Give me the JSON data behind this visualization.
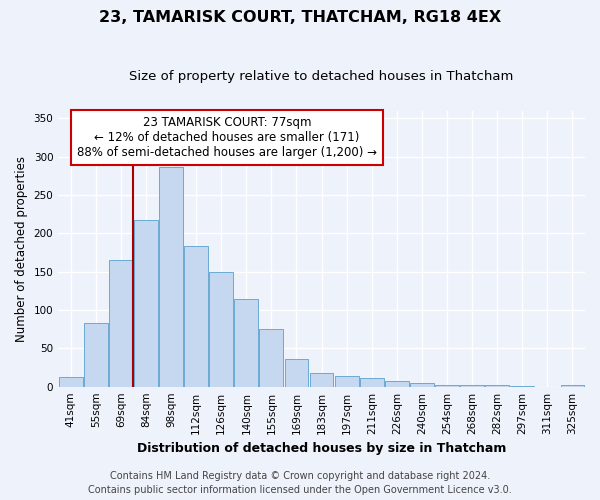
{
  "title": "23, TAMARISK COURT, THATCHAM, RG18 4EX",
  "subtitle": "Size of property relative to detached houses in Thatcham",
  "xlabel": "Distribution of detached houses by size in Thatcham",
  "ylabel": "Number of detached properties",
  "categories": [
    "41sqm",
    "55sqm",
    "69sqm",
    "84sqm",
    "98sqm",
    "112sqm",
    "126sqm",
    "140sqm",
    "155sqm",
    "169sqm",
    "183sqm",
    "197sqm",
    "211sqm",
    "226sqm",
    "240sqm",
    "254sqm",
    "268sqm",
    "282sqm",
    "297sqm",
    "311sqm",
    "325sqm"
  ],
  "values": [
    12,
    83,
    165,
    217,
    287,
    183,
    150,
    114,
    75,
    36,
    18,
    14,
    11,
    8,
    5,
    2,
    2,
    2,
    1,
    0,
    2
  ],
  "bar_color": "#c5d8f0",
  "bar_edge_color": "#6aaad4",
  "annotation_box_text_line1": "23 TAMARISK COURT: 77sqm",
  "annotation_box_text_line2": "← 12% of detached houses are smaller (171)",
  "annotation_box_text_line3": "88% of semi-detached houses are larger (1,200) →",
  "annotation_box_color": "#cc0000",
  "property_line_color": "#aa0000",
  "property_line_x": 2.5,
  "ylim": [
    0,
    360
  ],
  "yticks": [
    0,
    50,
    100,
    150,
    200,
    250,
    300,
    350
  ],
  "footer1": "Contains HM Land Registry data © Crown copyright and database right 2024.",
  "footer2": "Contains public sector information licensed under the Open Government Licence v3.0.",
  "background_color": "#eef2fa",
  "grid_color": "#ffffff",
  "title_fontsize": 11.5,
  "subtitle_fontsize": 9.5,
  "xlabel_fontsize": 9,
  "ylabel_fontsize": 8.5,
  "tick_fontsize": 7.5,
  "annotation_fontsize": 8.5,
  "footer_fontsize": 7
}
